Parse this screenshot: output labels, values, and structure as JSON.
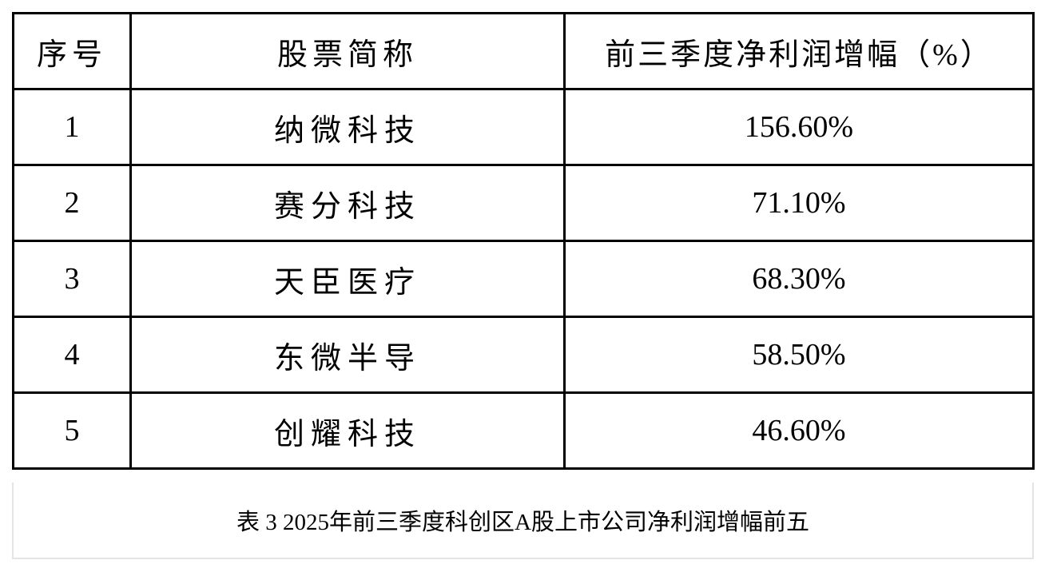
{
  "table": {
    "headers": [
      "序号",
      "股票简称",
      "前三季度净利润增幅（%）"
    ],
    "rows": [
      [
        "1",
        "纳微科技",
        "156.60%"
      ],
      [
        "2",
        "赛分科技",
        "71.10%"
      ],
      [
        "3",
        "天臣医疗",
        "68.30%"
      ],
      [
        "4",
        "东微半导",
        "58.50%"
      ],
      [
        "5",
        "创耀科技",
        "46.60%"
      ]
    ]
  },
  "caption": "表 3 2025年前三季度科创区A股上市公司净利润增幅前五"
}
